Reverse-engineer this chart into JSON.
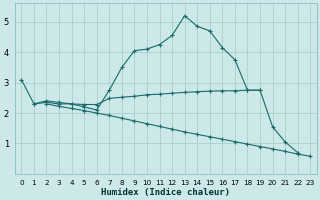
{
  "xlabel": "Humidex (Indice chaleur)",
  "background_color": "#cce8e8",
  "grid_color": "#aad0d0",
  "line_color": "#1a6b6b",
  "xlim": [
    -0.5,
    23.5
  ],
  "ylim": [
    0.0,
    5.6
  ],
  "yticks": [
    1,
    2,
    3,
    4,
    5
  ],
  "xticks": [
    0,
    1,
    2,
    3,
    4,
    5,
    6,
    7,
    8,
    9,
    10,
    11,
    12,
    13,
    14,
    15,
    16,
    17,
    18,
    19,
    20,
    21,
    22,
    23
  ],
  "line1_x": [
    0,
    1,
    2,
    3,
    4,
    5,
    6,
    7,
    8,
    9,
    10,
    11,
    12,
    13,
    14,
    15,
    16,
    17,
    18,
    19,
    20,
    21,
    22
  ],
  "line1_y": [
    3.1,
    2.3,
    2.4,
    2.35,
    2.3,
    2.2,
    2.1,
    2.75,
    3.5,
    4.05,
    4.1,
    4.25,
    4.55,
    5.2,
    4.85,
    4.7,
    4.15,
    3.75,
    2.75,
    2.75,
    1.55,
    1.05,
    0.7
  ],
  "line2_x": [
    1,
    2,
    3,
    4,
    5,
    6,
    7,
    8,
    9,
    10,
    11,
    12,
    13,
    14,
    15,
    16,
    17,
    18,
    19
  ],
  "line2_y": [
    2.3,
    2.35,
    2.3,
    2.3,
    2.28,
    2.28,
    2.48,
    2.52,
    2.55,
    2.6,
    2.62,
    2.65,
    2.68,
    2.7,
    2.72,
    2.73,
    2.73,
    2.75,
    2.75
  ],
  "line3_x": [
    2,
    3,
    4,
    5,
    6,
    7,
    8,
    9,
    10,
    11,
    12,
    13,
    14,
    15,
    16,
    17,
    18,
    19,
    20,
    21,
    22,
    23
  ],
  "line3_y": [
    2.3,
    2.22,
    2.15,
    2.08,
    2.0,
    1.92,
    1.83,
    1.74,
    1.65,
    1.56,
    1.47,
    1.38,
    1.3,
    1.22,
    1.14,
    1.06,
    0.98,
    0.9,
    0.82,
    0.74,
    0.65,
    0.58
  ]
}
